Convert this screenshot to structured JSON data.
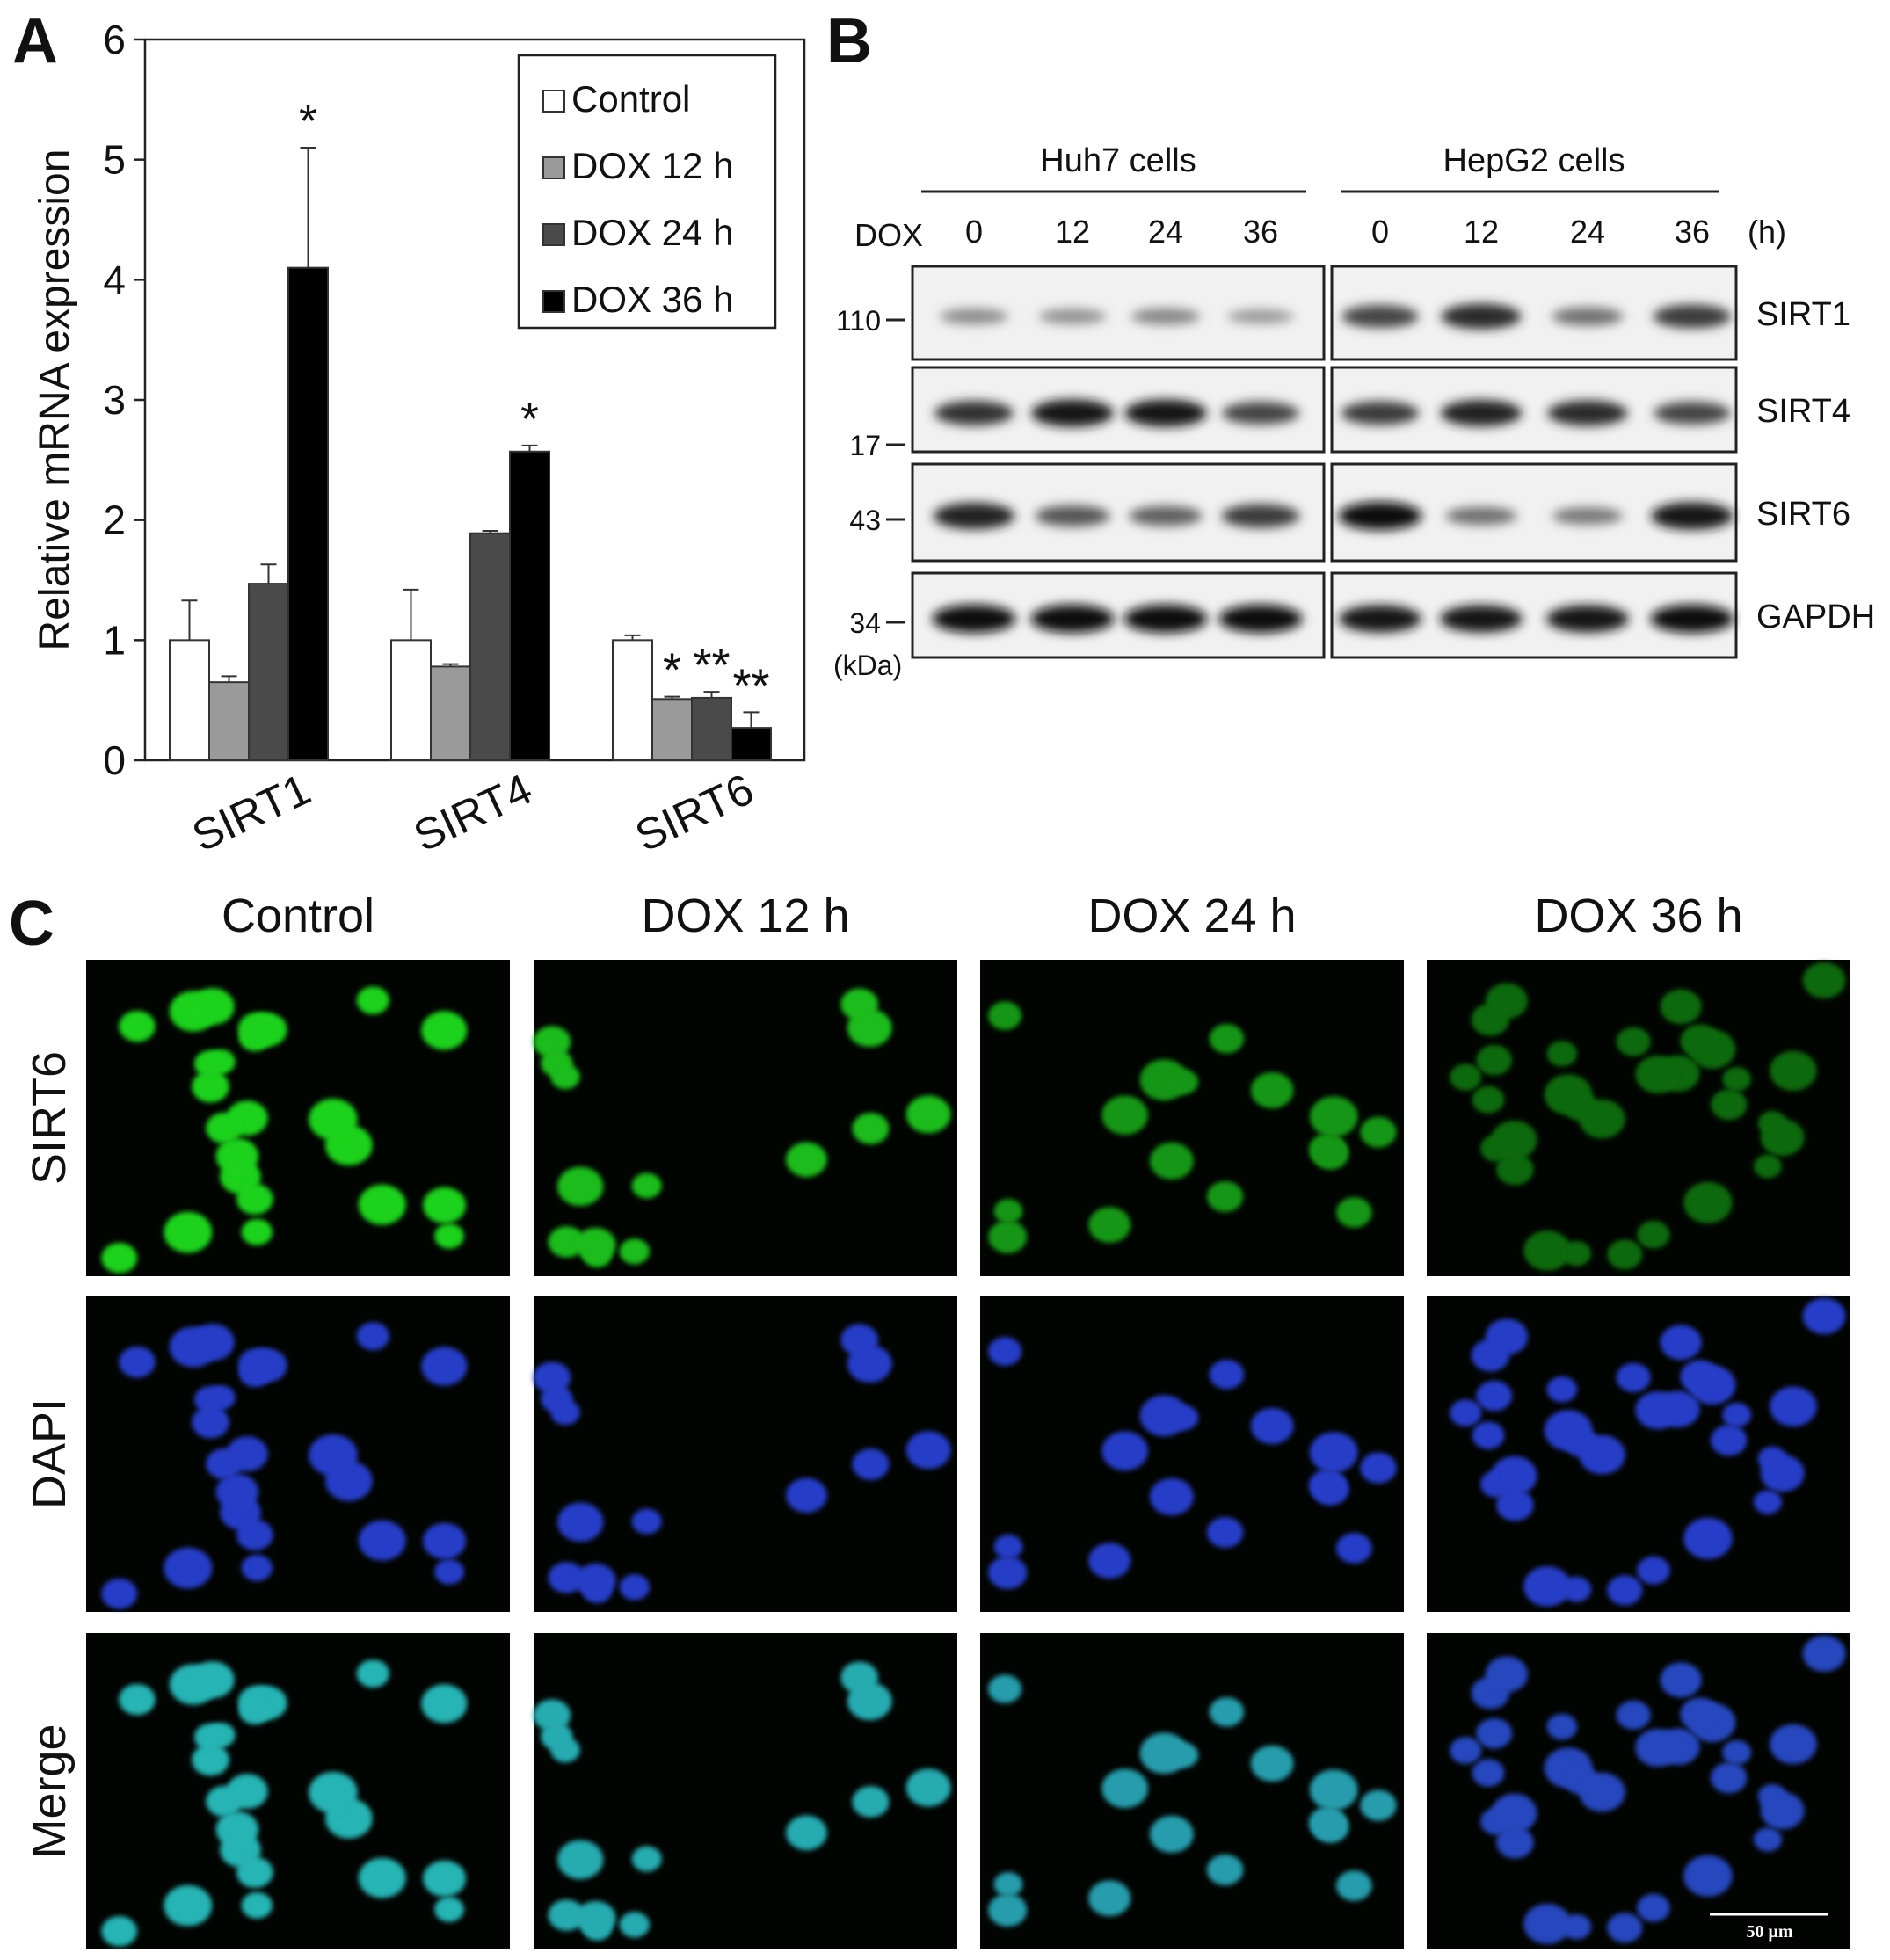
{
  "panels": {
    "a": {
      "letter": "A"
    },
    "b": {
      "letter": "B"
    },
    "c": {
      "letter": "C"
    }
  },
  "chart_data": {
    "type": "bar",
    "title": "",
    "xlabel": "",
    "ylabel": "Relative mRNA expression",
    "ylim": [
      0,
      6
    ],
    "yticks": [
      "0",
      "1",
      "2",
      "3",
      "4",
      "5",
      "6"
    ],
    "categories": [
      "SIRT1",
      "SIRT4",
      "SIRT6"
    ],
    "legend_position": "top-right",
    "grid": false,
    "series": [
      {
        "name": "Control",
        "color": "#ffffff",
        "values": [
          1.0,
          1.0,
          1.0
        ],
        "errors": [
          0.33,
          0.42,
          0.04
        ],
        "annotations": [
          "",
          "",
          ""
        ]
      },
      {
        "name": "DOX 12 h",
        "color": "#9a9a9a",
        "values": [
          0.65,
          0.78,
          0.51
        ],
        "errors": [
          0.05,
          0.02,
          0.02
        ],
        "annotations": [
          "",
          "",
          "*"
        ]
      },
      {
        "name": "DOX 24 h",
        "color": "#4a4a4a",
        "values": [
          1.47,
          1.89,
          0.52
        ],
        "errors": [
          0.16,
          0.02,
          0.05
        ],
        "annotations": [
          "",
          "",
          "**"
        ]
      },
      {
        "name": "DOX 36 h",
        "color": "#000000",
        "values": [
          4.1,
          2.57,
          0.27
        ],
        "errors": [
          1.0,
          0.05,
          0.13
        ],
        "annotations": [
          "*",
          "*",
          "**"
        ]
      }
    ]
  },
  "western_blot": {
    "treatment_label": "DOX",
    "unit_label": "(h)",
    "kda_label": "(kDa)",
    "cell_lines": [
      {
        "name": "Huh7 cells",
        "timepoints": [
          "0",
          "12",
          "24",
          "36"
        ]
      },
      {
        "name": "HepG2 cells",
        "timepoints": [
          "0",
          "12",
          "24",
          "36"
        ]
      }
    ],
    "rows": [
      {
        "protein": "SIRT1",
        "marker": "110",
        "intensity": [
          [
            0.3,
            0.27,
            0.33,
            0.22
          ],
          [
            0.7,
            0.85,
            0.45,
            0.75
          ]
        ]
      },
      {
        "protein": "SIRT4",
        "marker": "17",
        "intensity": [
          [
            0.8,
            0.95,
            0.95,
            0.7
          ],
          [
            0.75,
            0.9,
            0.85,
            0.7
          ]
        ]
      },
      {
        "protein": "SIRT6",
        "marker": "43",
        "intensity": [
          [
            0.9,
            0.6,
            0.55,
            0.75
          ],
          [
            1.0,
            0.45,
            0.4,
            0.95
          ]
        ]
      },
      {
        "protein": "GAPDH",
        "marker": "34",
        "intensity": [
          [
            1.0,
            1.0,
            1.0,
            1.0
          ],
          [
            0.95,
            0.95,
            0.95,
            1.0
          ]
        ]
      }
    ]
  },
  "microscopy": {
    "columns": [
      "Control",
      "DOX 12 h",
      "DOX 24 h",
      "DOX 36 h"
    ],
    "rows": [
      "SIRT6",
      "DAPI",
      "Merge"
    ],
    "scale_bar": "50 μm"
  }
}
